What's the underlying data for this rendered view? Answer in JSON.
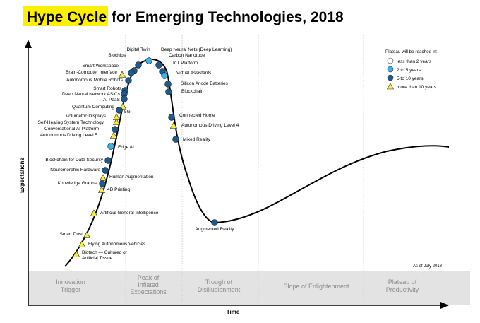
{
  "title": {
    "highlight": "Hype Cycle",
    "rest": "for Emerging Technologies, 2018"
  },
  "axes": {
    "y_label": "Expectations",
    "x_label": "Time"
  },
  "as_of": "As of July 2018",
  "legend": {
    "title": "Plateau will be reached in:",
    "items": [
      {
        "label": "less than 2 years",
        "color": "#ffffff",
        "shape": "circle"
      },
      {
        "label": "2 to 5 years",
        "color": "#3ab4e8",
        "shape": "circle"
      },
      {
        "label": "5 to 10 years",
        "color": "#1d5b8c",
        "shape": "circle"
      },
      {
        "label": "more than 10 years",
        "color": "#f6ec3a",
        "shape": "triangle"
      }
    ]
  },
  "phases": [
    {
      "line1": "Innovation",
      "line2": "Trigger",
      "line3": ""
    },
    {
      "line1": "Peak of",
      "line2": "Inflated",
      "line3": "Expectations"
    },
    {
      "line1": "Trough of",
      "line2": "Disillusionment",
      "line3": ""
    },
    {
      "line1": "Slope of Enlightenment",
      "line2": "",
      "line3": ""
    },
    {
      "line1": "Plateau of",
      "line2": "Productivity",
      "line3": ""
    }
  ],
  "colors": {
    "highlight": "#ffef00",
    "circle_2_5": "#3ab4e8",
    "circle_5_10": "#1d5b8c",
    "triangle_10_plus": "#f6ec3a",
    "band": "#e3e3e3"
  },
  "technologies": [
    {
      "name": "Digital Twin",
      "plateau": "5 to 10 years"
    },
    {
      "name": "Deep Neural Nets (Deep Learning)",
      "plateau": "2 to 5 years"
    },
    {
      "name": "Biochips",
      "plateau": "5 to 10 years"
    },
    {
      "name": "Carbon Nanotube",
      "plateau": "5 to 10 years"
    },
    {
      "name": "Smart Workspace",
      "plateau": "5 to 10 years"
    },
    {
      "name": "IoT Platform",
      "plateau": "5 to 10 years"
    },
    {
      "name": "Brain-Computer Interface",
      "plateau": "more than 10 years"
    },
    {
      "name": "Virtual Assistants",
      "plateau": "2 to 5 years"
    },
    {
      "name": "Autonomous Mobile Robots",
      "plateau": "5 to 10 years"
    },
    {
      "name": "Silicon Anode Batteries",
      "plateau": "5 to 10 years"
    },
    {
      "name": "Smart Robots",
      "plateau": "5 to 10 years"
    },
    {
      "name": "Blockchain",
      "plateau": "5 to 10 years"
    },
    {
      "name": "Deep Neural Network ASICs",
      "plateau": "5 to 10 years"
    },
    {
      "name": "AI PaaS",
      "plateau": "5 to 10 years"
    },
    {
      "name": "Quantum Computing",
      "plateau": "more than 10 years"
    },
    {
      "name": "5G",
      "plateau": "5 to 10 years"
    },
    {
      "name": "Volumetric Displays",
      "plateau": "more than 10 years"
    },
    {
      "name": "Connected Home",
      "plateau": "5 to 10 years"
    },
    {
      "name": "Self-Healing System Technology",
      "plateau": "more than 10 years"
    },
    {
      "name": "Autonomous Driving Level 4",
      "plateau": "more than 10 years"
    },
    {
      "name": "Conversational AI Platform",
      "plateau": "5 to 10 years"
    },
    {
      "name": "Autonomous Driving Level 5",
      "plateau": "more than 10 years"
    },
    {
      "name": "Mixed Reality",
      "plateau": "5 to 10 years"
    },
    {
      "name": "Edge AI",
      "plateau": "2 to 5 years"
    },
    {
      "name": "Blockchain for Data Security",
      "plateau": "5 to 10 years"
    },
    {
      "name": "Neuromorphic Hardware",
      "plateau": "5 to 10 years"
    },
    {
      "name": "Human Augmentation",
      "plateau": "more than 10 years"
    },
    {
      "name": "Knowledge Graphs",
      "plateau": "5 to 10 years"
    },
    {
      "name": "4D Printing",
      "plateau": "more than 10 years"
    },
    {
      "name": "Artificial General Intelligence",
      "plateau": "more than 10 years"
    },
    {
      "name": "Augmented Reality",
      "plateau": "5 to 10 years"
    },
    {
      "name": "Smart Dust",
      "plateau": "more than 10 years"
    },
    {
      "name": "Flying Autonomous Vehicles",
      "plateau": "more than 10 years"
    },
    {
      "name": "Biotech — Cultured or",
      "plateau": "more than 10 years",
      "name2": "Artificial Tissue"
    }
  ]
}
